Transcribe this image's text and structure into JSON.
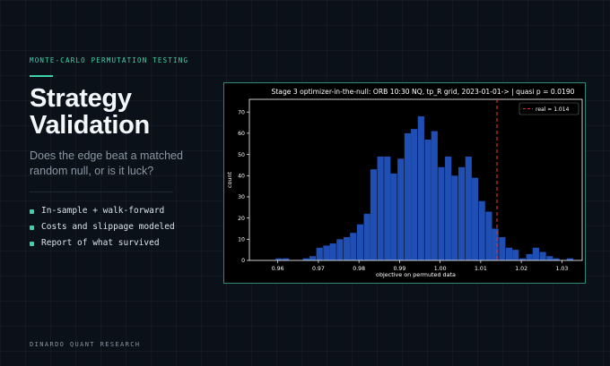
{
  "slide": {
    "kicker": "MONTE-CARLO PERMUTATION TESTING",
    "title_line1": "Strategy",
    "title_line2": "Validation",
    "subtitle": "Does the edge beat a matched random null, or is it luck?",
    "bullets": [
      "In-sample + walk-forward",
      "Costs and slippage modeled",
      "Report of what survived"
    ],
    "footer": "DINARDO QUANT RESEARCH"
  },
  "colors": {
    "accent": "#3fd0b0",
    "bar": "#1f4fb5",
    "real_line": "#e03030"
  },
  "chart_data": {
    "type": "bar",
    "title": "Stage 3 optimizer-in-the-null: ORB 10:30 NQ, tp_R grid, 2023-01-01->  |  quasi p = 0.0190",
    "xlabel": "objective on permuted data",
    "ylabel": "count",
    "xlim": [
      0.953,
      1.035
    ],
    "ylim": [
      0,
      76
    ],
    "x_ticks": [
      "0.96",
      "0.97",
      "0.98",
      "0.99",
      "1.00",
      "1.01",
      "1.02",
      "1.03"
    ],
    "y_ticks": [
      "0",
      "10",
      "20",
      "30",
      "40",
      "50",
      "60",
      "70"
    ],
    "grid": false,
    "legend_position": "top-right",
    "bin_width": 0.00167,
    "bin_starts": [
      0.9595,
      0.9612,
      0.9628,
      0.9645,
      0.9662,
      0.9678,
      0.9695,
      0.9712,
      0.9728,
      0.9745,
      0.9762,
      0.9778,
      0.9795,
      0.9812,
      0.9828,
      0.9845,
      0.9862,
      0.9878,
      0.9895,
      0.9912,
      0.9928,
      0.9945,
      0.9962,
      0.9978,
      0.9995,
      1.0012,
      1.0028,
      1.0045,
      1.0062,
      1.0078,
      1.0095,
      1.0112,
      1.0128,
      1.0145,
      1.0162,
      1.0178,
      1.0195,
      1.0212,
      1.0228,
      1.0245,
      1.0262,
      1.0278,
      1.0295,
      1.0312
    ],
    "counts": [
      1,
      1,
      0,
      0,
      1,
      2,
      6,
      7,
      8,
      10,
      11,
      13,
      17,
      22,
      43,
      49,
      49,
      41,
      48,
      60,
      62,
      68,
      57,
      61,
      44,
      49,
      40,
      44,
      49,
      39,
      28,
      23,
      15,
      11,
      6,
      5,
      1,
      3,
      6,
      4,
      2,
      1,
      0,
      1
    ],
    "reference_line": {
      "x": 1.014,
      "label": "real = 1.014",
      "style": "dashed"
    }
  }
}
